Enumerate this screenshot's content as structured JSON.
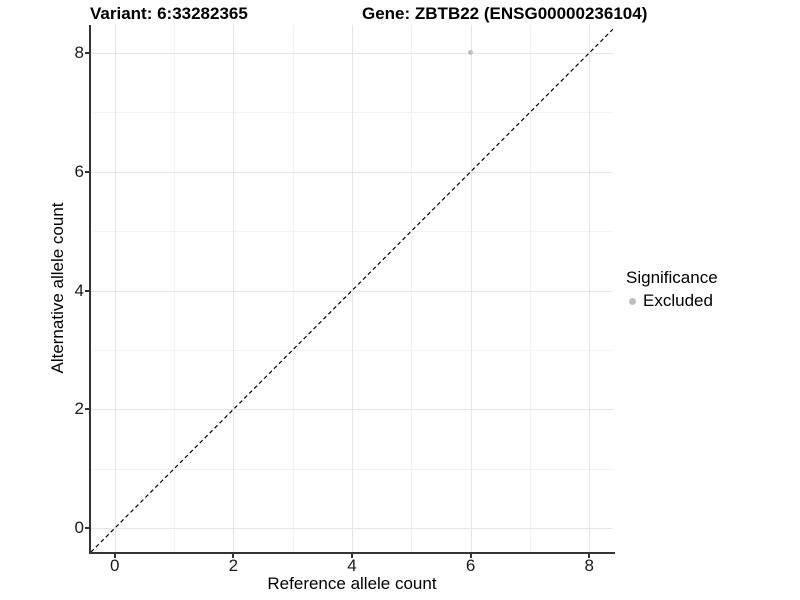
{
  "titles": {
    "variant": "Variant: 6:33282365",
    "gene": "Gene: ZBTB22 (ENSG00000236104)"
  },
  "chart_data": {
    "type": "scatter",
    "title": "Variant: 6:33282365 — Gene: ZBTB22 (ENSG00000236104)",
    "xlabel": "Reference allele count",
    "ylabel": "Alternative allele count",
    "xlim": [
      -0.4,
      8.4
    ],
    "ylim": [
      -0.4,
      8.47
    ],
    "xticks": [
      0,
      2,
      4,
      6,
      8
    ],
    "yticks": [
      0,
      2,
      4,
      6,
      8
    ],
    "xminor": [
      1,
      3,
      5,
      7
    ],
    "yminor": [
      1,
      3,
      5,
      7
    ],
    "grid": "major+minor",
    "points": [
      {
        "x": 6,
        "y": 8,
        "series": "Excluded"
      }
    ],
    "reference_line": {
      "slope": 1,
      "intercept": 0,
      "style": "dashed",
      "color": "#000000"
    },
    "legend": {
      "title": "Significance",
      "position": "right",
      "items": [
        {
          "label": "Excluded",
          "color": "#bebebe"
        }
      ]
    }
  },
  "colors": {
    "grid_major": "#e5e5e5",
    "grid_minor": "#f2f2f2",
    "axis_line": "#333333",
    "point": "#bebebe",
    "text": "#000000"
  }
}
